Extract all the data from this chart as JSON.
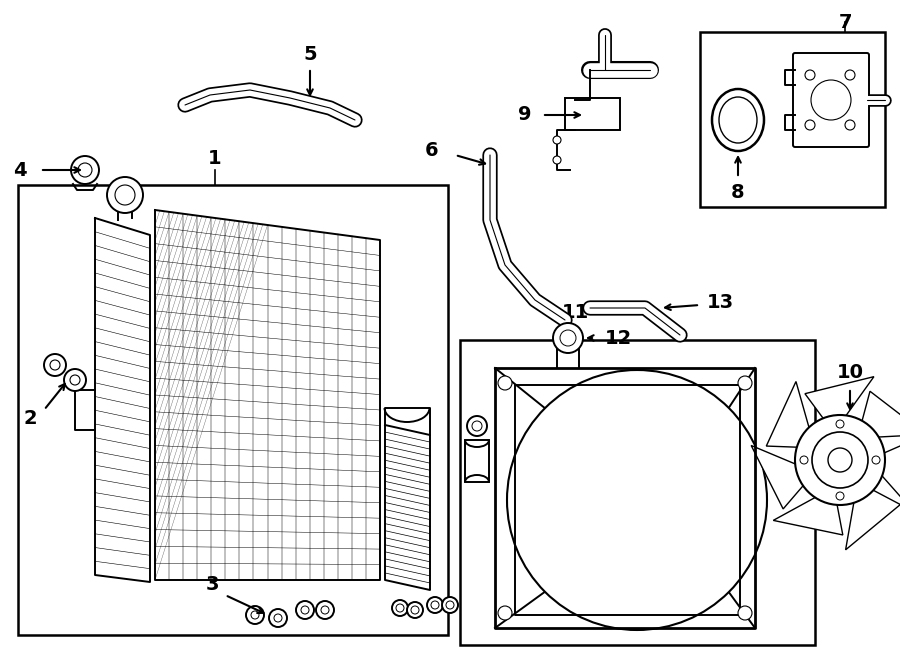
{
  "bg_color": "#ffffff",
  "line_color": "#000000",
  "fig_width": 9.0,
  "fig_height": 6.62,
  "dpi": 100,
  "lw_main": 1.4,
  "lw_thin": 0.7,
  "lw_thick": 2.0
}
